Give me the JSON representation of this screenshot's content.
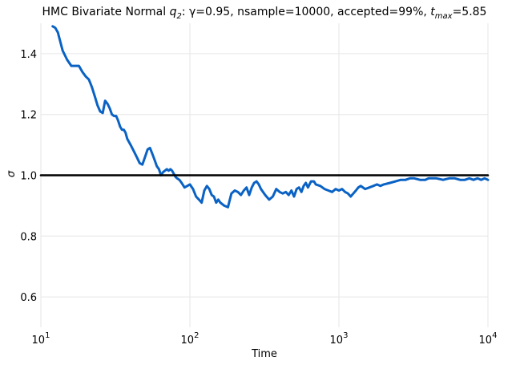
{
  "chart_data": {
    "type": "line",
    "title": {
      "prefix": "HMC Bivariate Normal ",
      "q_base": "q",
      "q_sub": "2",
      "middle": ": γ=0.95, nsample=10000, accepted=99%, ",
      "t_base": "t",
      "t_sub": "max",
      "suffix": "=5.85"
    },
    "xlabel": "Time",
    "ylabel": "σ",
    "xscale": "log",
    "xlim": [
      10,
      10000
    ],
    "ylim": [
      0.5,
      1.5
    ],
    "xticks": [
      {
        "value": 10,
        "base": "10",
        "exp": "1"
      },
      {
        "value": 100,
        "base": "10",
        "exp": "2"
      },
      {
        "value": 1000,
        "base": "10",
        "exp": "3"
      },
      {
        "value": 10000,
        "base": "10",
        "exp": "4"
      }
    ],
    "yticks": [
      {
        "value": 0.6,
        "label": "0.6"
      },
      {
        "value": 0.8,
        "label": "0.8"
      },
      {
        "value": 1.0,
        "label": "1.0"
      },
      {
        "value": 1.2,
        "label": "1.2"
      },
      {
        "value": 1.4,
        "label": "1.4"
      }
    ],
    "grid": true,
    "series": [
      {
        "color": "#0a62c4",
        "x": [
          12,
          12.5,
          13,
          13.5,
          14,
          15,
          16,
          17,
          18,
          19,
          20,
          21,
          22,
          23,
          24,
          25,
          26,
          27,
          28,
          29,
          30,
          31,
          32,
          33,
          34,
          35,
          36,
          37,
          38,
          40,
          42,
          44,
          46,
          48,
          50,
          52,
          54,
          56,
          58,
          60,
          62,
          64,
          66,
          68,
          70,
          72,
          74,
          76,
          78,
          80,
          82,
          85,
          88,
          92,
          96,
          100,
          105,
          110,
          115,
          120,
          125,
          130,
          135,
          140,
          145,
          150,
          155,
          160,
          170,
          180,
          190,
          200,
          210,
          220,
          230,
          240,
          250,
          260,
          270,
          280,
          290,
          300,
          320,
          340,
          360,
          380,
          400,
          420,
          440,
          460,
          480,
          500,
          520,
          540,
          560,
          580,
          600,
          620,
          650,
          680,
          700,
          750,
          800,
          850,
          900,
          950,
          1000,
          1050,
          1100,
          1150,
          1200,
          1250,
          1300,
          1350,
          1400,
          1450,
          1500,
          1600,
          1700,
          1800,
          1900,
          2000,
          2200,
          2400,
          2600,
          2800,
          3000,
          3200,
          3500,
          3800,
          4000,
          4500,
          5000,
          5500,
          6000,
          6500,
          7000,
          7500,
          8000,
          8500,
          9000,
          9500,
          10000
        ],
        "y": [
          1.49,
          1.485,
          1.47,
          1.44,
          1.41,
          1.38,
          1.36,
          1.36,
          1.36,
          1.34,
          1.325,
          1.315,
          1.29,
          1.26,
          1.23,
          1.21,
          1.205,
          1.245,
          1.235,
          1.22,
          1.2,
          1.195,
          1.195,
          1.18,
          1.16,
          1.15,
          1.15,
          1.14,
          1.12,
          1.1,
          1.08,
          1.06,
          1.04,
          1.035,
          1.06,
          1.085,
          1.09,
          1.07,
          1.05,
          1.03,
          1.02,
          1.0,
          1.01,
          1.015,
          1.02,
          1.015,
          1.02,
          1.015,
          1.005,
          0.995,
          0.99,
          0.985,
          0.975,
          0.96,
          0.965,
          0.97,
          0.955,
          0.93,
          0.92,
          0.91,
          0.95,
          0.965,
          0.955,
          0.935,
          0.93,
          0.91,
          0.92,
          0.91,
          0.9,
          0.895,
          0.94,
          0.95,
          0.945,
          0.935,
          0.95,
          0.96,
          0.935,
          0.96,
          0.975,
          0.98,
          0.97,
          0.955,
          0.935,
          0.92,
          0.93,
          0.955,
          0.945,
          0.94,
          0.945,
          0.935,
          0.95,
          0.93,
          0.955,
          0.96,
          0.945,
          0.965,
          0.975,
          0.96,
          0.98,
          0.98,
          0.97,
          0.965,
          0.955,
          0.95,
          0.945,
          0.955,
          0.95,
          0.955,
          0.945,
          0.94,
          0.93,
          0.94,
          0.95,
          0.96,
          0.965,
          0.96,
          0.955,
          0.96,
          0.965,
          0.97,
          0.965,
          0.97,
          0.975,
          0.98,
          0.985,
          0.985,
          0.99,
          0.99,
          0.985,
          0.985,
          0.99,
          0.99,
          0.985,
          0.99,
          0.99,
          0.985,
          0.985,
          0.99,
          0.985,
          0.99,
          0.985,
          0.99,
          0.985
        ]
      },
      {
        "color": "#000000",
        "x": [
          10,
          10000
        ],
        "y": [
          1.0,
          1.0
        ]
      }
    ]
  }
}
